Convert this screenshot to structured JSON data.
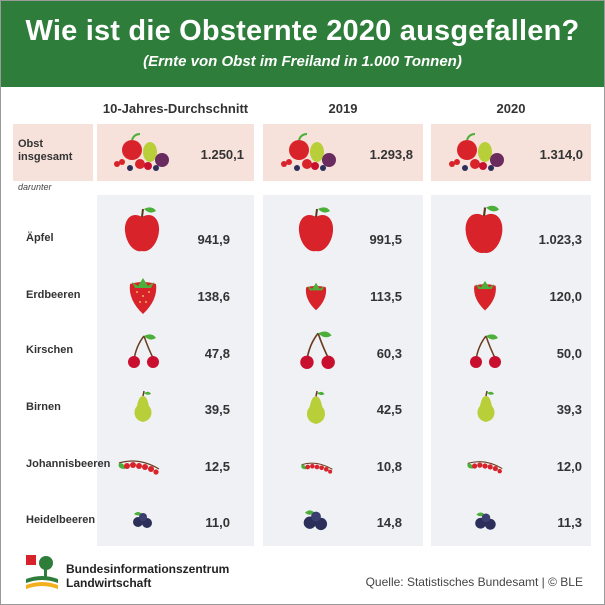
{
  "header": {
    "title": "Wie ist die Obsternte 2020 ausgefallen?",
    "subtitle": "(Ernte von Obst im Freiland in 1.000 Tonnen)"
  },
  "columns": [
    "10-Jahres-Durchschnitt",
    "2019",
    "2020"
  ],
  "total_label_line1": "Obst",
  "total_label_line2": "insgesamt",
  "darunter_label": "darunter",
  "rows": [
    {
      "label": "Äpfel",
      "values": [
        "941,9",
        "991,5",
        "1.023,3"
      ]
    },
    {
      "label": "Erdbeeren",
      "values": [
        "138,6",
        "113,5",
        "120,0"
      ]
    },
    {
      "label": "Kirschen",
      "values": [
        "47,8",
        "60,3",
        "50,0"
      ]
    },
    {
      "label": "Birnen",
      "values": [
        "39,5",
        "42,5",
        "39,3"
      ]
    },
    {
      "label": "Johannisbeeren",
      "values": [
        "12,5",
        "10,8",
        "12,0"
      ]
    },
    {
      "label": "Heidelbeeren",
      "values": [
        "11,0",
        "14,8",
        "11,3"
      ]
    }
  ],
  "totals": [
    "1.250,1",
    "1.293,8",
    "1.314,0"
  ],
  "footer": {
    "org_line1": "Bundesinformationszentrum",
    "org_line2": "Landwirtschaft",
    "source": "Quelle: Statistisches Bundesamt | © BLE"
  },
  "colors": {
    "header_green": "#2e7d3a",
    "panel_grey": "#eff1f4",
    "total_pink": "#f7e2db",
    "apple_red": "#d8232a",
    "leaf_green": "#4caf3a",
    "pear_green": "#b9cf3a",
    "blueberry": "#2b2f5a"
  },
  "chart_data": {
    "type": "table",
    "title": "Wie ist die Obsternte 2020 ausgefallen?",
    "subtitle": "(Ernte von Obst im Freiland in 1.000 Tonnen)",
    "columns": [
      "10-Jahres-Durchschnitt",
      "2019",
      "2020"
    ],
    "series": [
      {
        "name": "Obst insgesamt",
        "values": [
          1250.1,
          1293.8,
          1314.0
        ]
      },
      {
        "name": "Äpfel",
        "values": [
          941.9,
          991.5,
          1023.3
        ]
      },
      {
        "name": "Erdbeeren",
        "values": [
          138.6,
          113.5,
          120.0
        ]
      },
      {
        "name": "Kirschen",
        "values": [
          47.8,
          60.3,
          50.0
        ]
      },
      {
        "name": "Birnen",
        "values": [
          39.5,
          42.5,
          39.3
        ]
      },
      {
        "name": "Johannisbeeren",
        "values": [
          12.5,
          10.8,
          12.0
        ]
      },
      {
        "name": "Heidelbeeren",
        "values": [
          11.0,
          14.8,
          11.3
        ]
      }
    ]
  }
}
